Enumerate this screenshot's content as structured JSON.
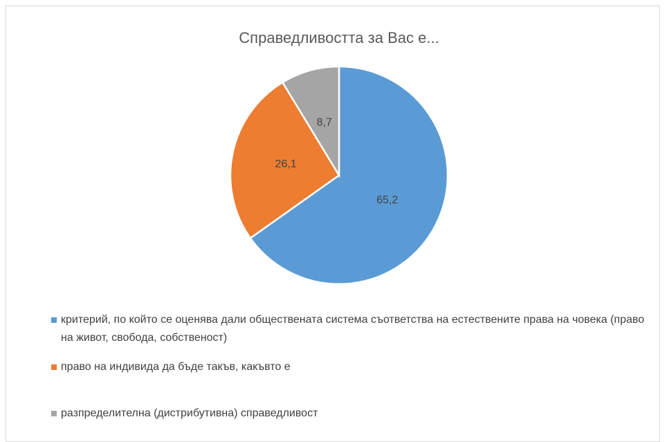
{
  "chart_data": {
    "type": "pie",
    "title": "Справедливостта за Вас е...",
    "categories": [
      "критерий, по който се оценява дали обществената система съответства на естествените права на човека (право на живот, свобода, собственост)",
      "право на индивида да бъде такъв, какъвто е",
      "разпределителна (дистрибутивна) справедливост"
    ],
    "values": [
      65.2,
      26.1,
      8.7
    ],
    "value_labels": [
      "65,2",
      "26,1",
      "8,7"
    ],
    "colors": [
      "#5b9bd5",
      "#ed7d31",
      "#a5a5a5"
    ],
    "legend": "bottom"
  }
}
